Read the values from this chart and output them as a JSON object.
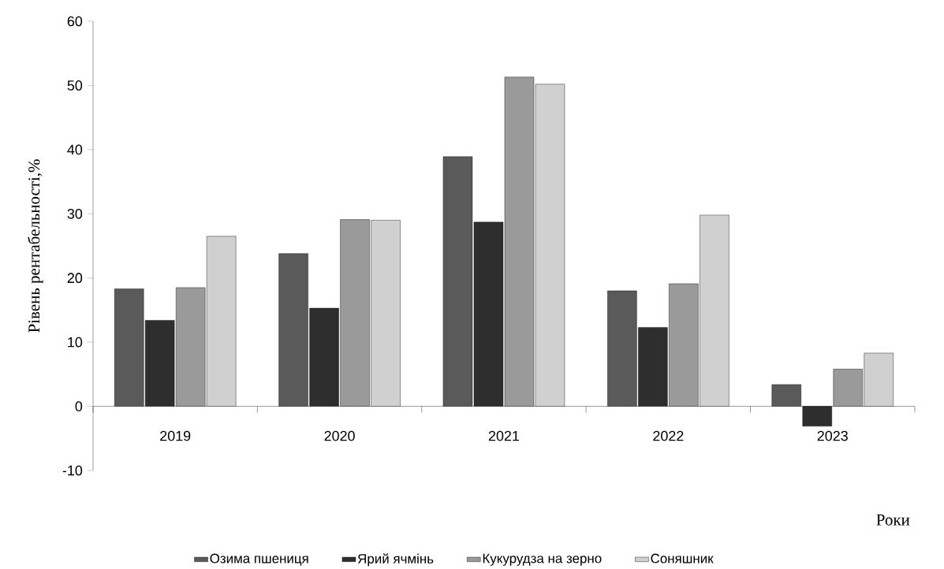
{
  "chart_data": {
    "type": "bar",
    "xlabel": "Роки",
    "ylabel": "Рівень рентабельності,%",
    "categories": [
      "2019",
      "2020",
      "2021",
      "2022",
      "2023"
    ],
    "series": [
      {
        "name": "Озима пшениця",
        "color": "#5a5a5a",
        "values": [
          18.3,
          23.8,
          38.9,
          18.0,
          3.4
        ]
      },
      {
        "name": "Ярий ячмінь",
        "color": "#2e2e2e",
        "values": [
          13.4,
          15.3,
          28.7,
          12.3,
          -3.1
        ]
      },
      {
        "name": "Кукурудза на зерно",
        "color": "#9a9a9a",
        "values": [
          18.5,
          29.1,
          51.3,
          19.1,
          5.8
        ]
      },
      {
        "name": "Соняшник",
        "color": "#d0d0d0",
        "values": [
          26.5,
          29.0,
          50.2,
          29.8,
          8.3
        ]
      }
    ],
    "ylim": [
      -10,
      60
    ],
    "yticks": [
      -10,
      0,
      10,
      20,
      30,
      40,
      50,
      60
    ],
    "grid": false,
    "legend": "bottom"
  }
}
